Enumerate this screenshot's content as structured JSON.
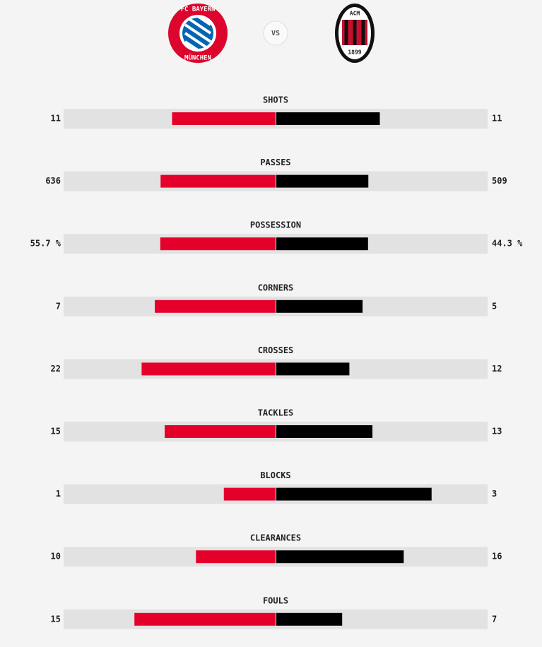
{
  "header": {
    "home_logo_top": "FC BAYERN",
    "home_logo_bottom": "MÜNCHEN",
    "vs": "VS",
    "away_logo_top": "ACM",
    "away_logo_bottom": "1899"
  },
  "stats": [
    {
      "label": "SHOTS",
      "home": 11,
      "away": 11
    },
    {
      "label": "PASSES",
      "home": 636,
      "away": 509
    },
    {
      "label": "POSSESSION",
      "home": 55.7,
      "away": 44.3,
      "home_label": "55.7 %",
      "away_label": "44.3 %"
    },
    {
      "label": "CORNERS",
      "home": 7,
      "away": 5
    },
    {
      "label": "CROSSES",
      "home": 22,
      "away": 12
    },
    {
      "label": "TACKLES",
      "home": 15,
      "away": 13
    },
    {
      "label": "BLOCKS",
      "home": 1,
      "away": 3
    },
    {
      "label": "CLEARANCES",
      "home": 10,
      "away": 16
    },
    {
      "label": "FOULS",
      "home": 15,
      "away": 7
    }
  ]
}
